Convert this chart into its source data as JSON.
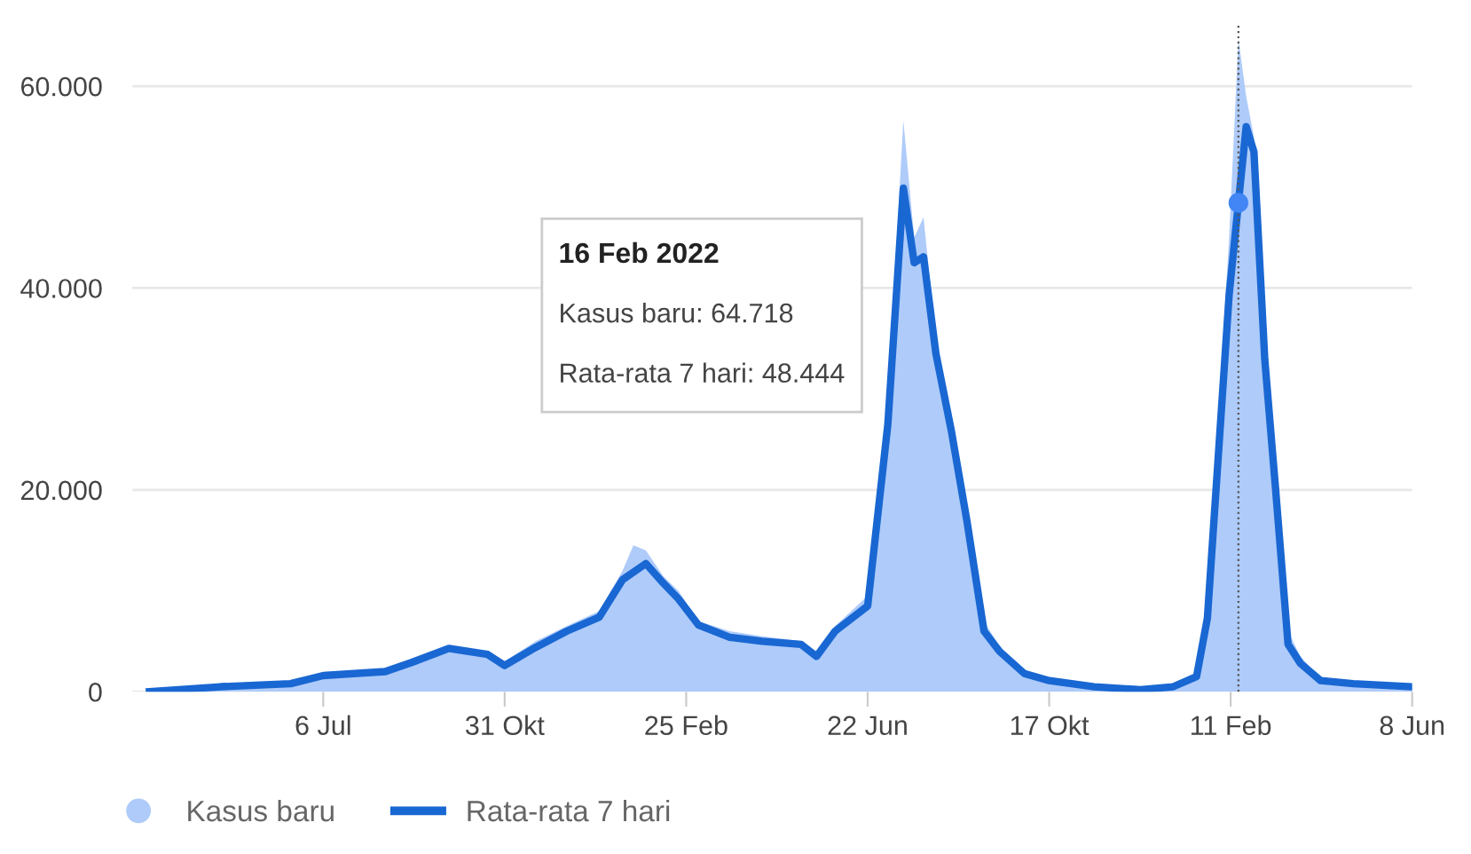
{
  "chart_data": {
    "type": "area",
    "xlim": [
      "2020-03-05",
      "2022-06-08"
    ],
    "ylim": [
      0,
      66000
    ],
    "yticks": [
      {
        "value": 0,
        "label": "0"
      },
      {
        "value": 20000,
        "label": "20.000"
      },
      {
        "value": 40000,
        "label": "40.000"
      },
      {
        "value": 60000,
        "label": "60.000"
      }
    ],
    "xticks": [
      {
        "value": "2020-07-06",
        "label": "6 Jul"
      },
      {
        "value": "2020-10-31",
        "label": "31 Okt"
      },
      {
        "value": "2021-02-25",
        "label": "25 Feb"
      },
      {
        "value": "2021-06-22",
        "label": "22 Jun"
      },
      {
        "value": "2021-10-17",
        "label": "17 Okt"
      },
      {
        "value": "2022-02-11",
        "label": "11 Feb"
      },
      {
        "value": "2022-06-08",
        "label": "8 Jun"
      }
    ],
    "grid": "y",
    "legend": "bottom left",
    "series": [
      {
        "name": "Kasus baru",
        "color": "#aecbfa",
        "x": [
          "2020-03-16",
          "2020-05-01",
          "2020-06-15",
          "2020-07-06",
          "2020-08-15",
          "2020-09-01",
          "2020-09-25",
          "2020-10-20",
          "2020-10-31",
          "2020-11-20",
          "2020-12-10",
          "2020-12-31",
          "2021-01-15",
          "2021-01-22",
          "2021-01-30",
          "2021-02-10",
          "2021-02-20",
          "2021-03-05",
          "2021-03-25",
          "2021-04-15",
          "2021-05-10",
          "2021-05-20",
          "2021-06-01",
          "2021-06-22",
          "2021-07-05",
          "2021-07-15",
          "2021-07-22",
          "2021-07-28",
          "2021-08-05",
          "2021-08-15",
          "2021-08-25",
          "2021-09-05",
          "2021-09-15",
          "2021-10-01",
          "2021-10-17",
          "2021-11-15",
          "2021-12-15",
          "2022-01-05",
          "2022-01-20",
          "2022-01-27",
          "2022-02-03",
          "2022-02-10",
          "2022-02-16",
          "2022-02-21",
          "2022-02-26",
          "2022-03-05",
          "2022-03-12",
          "2022-03-20",
          "2022-03-28",
          "2022-04-10",
          "2022-05-01",
          "2022-06-08"
        ],
        "values": [
          0,
          600,
          1000,
          1800,
          2300,
          3200,
          4600,
          4000,
          3000,
          5000,
          6500,
          8000,
          12000,
          14500,
          14000,
          11500,
          10000,
          7000,
          6000,
          5500,
          5000,
          4000,
          6500,
          9500,
          29000,
          56600,
          45000,
          47000,
          35000,
          27000,
          18500,
          7000,
          4500,
          2000,
          1200,
          600,
          300,
          600,
          1800,
          8500,
          27000,
          45000,
          64718,
          59000,
          55000,
          35000,
          22000,
          6000,
          3500,
          1300,
          800,
          500
        ]
      },
      {
        "name": "Rata-rata 7 hari",
        "type": "line",
        "color": "#1967d2",
        "marker": "none",
        "x": [
          "2020-03-16",
          "2020-05-01",
          "2020-06-15",
          "2020-07-06",
          "2020-08-15",
          "2020-09-01",
          "2020-09-25",
          "2020-10-20",
          "2020-10-31",
          "2020-11-20",
          "2020-12-10",
          "2020-12-31",
          "2021-01-15",
          "2021-01-30",
          "2021-02-10",
          "2021-02-20",
          "2021-03-05",
          "2021-03-25",
          "2021-04-15",
          "2021-05-10",
          "2021-05-20",
          "2021-06-01",
          "2021-06-22",
          "2021-07-05",
          "2021-07-15",
          "2021-07-22",
          "2021-07-28",
          "2021-08-05",
          "2021-08-15",
          "2021-08-25",
          "2021-09-05",
          "2021-09-15",
          "2021-10-01",
          "2021-10-17",
          "2021-11-15",
          "2021-12-15",
          "2022-01-05",
          "2022-01-20",
          "2022-01-27",
          "2022-02-03",
          "2022-02-10",
          "2022-02-16",
          "2022-02-21",
          "2022-02-26",
          "2022-03-05",
          "2022-03-12",
          "2022-03-20",
          "2022-03-28",
          "2022-04-10",
          "2022-05-01",
          "2022-06-08"
        ],
        "values": [
          0,
          500,
          800,
          1600,
          2000,
          2900,
          4300,
          3700,
          2600,
          4400,
          6000,
          7400,
          11100,
          12700,
          10800,
          9200,
          6600,
          5400,
          5000,
          4700,
          3500,
          6000,
          8500,
          26500,
          49900,
          42500,
          43100,
          33500,
          25800,
          16900,
          6000,
          4000,
          1800,
          1100,
          500,
          200,
          500,
          1500,
          7300,
          23300,
          39300,
          48444,
          56000,
          53500,
          32900,
          20000,
          4700,
          2800,
          1100,
          800,
          500
        ]
      },
      {
        "type": "scatter",
        "color": "#4285f4",
        "marker": "circle",
        "x": [
          "2022-02-16"
        ],
        "values": [
          48444
        ]
      }
    ],
    "ref_lines": [
      {
        "axis": "x",
        "value": "2022-02-16",
        "color": "#555555",
        "line_style": "dotted"
      }
    ],
    "annotations": [
      "16 Feb 2022",
      "Kasus baru: 64.718",
      "Rata-rata 7 hari: 48.444"
    ]
  }
}
